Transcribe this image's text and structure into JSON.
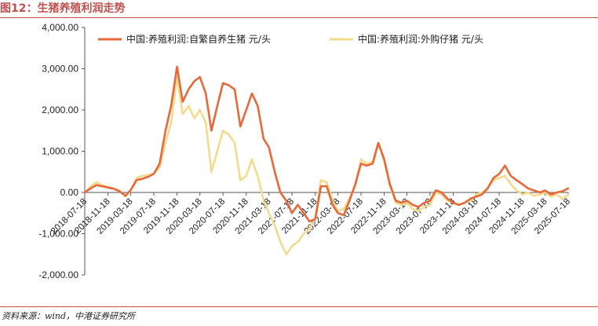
{
  "header": {
    "title": "图12：生猪养殖利润走势"
  },
  "footer": {
    "source": "资料来源：wind，中港证券研究所"
  },
  "colors": {
    "accent": "#c0504d",
    "series_self": "#e8683b",
    "series_purchased": "#f3db8e"
  },
  "chart_data": {
    "type": "line",
    "title": "",
    "xlabel": "",
    "ylabel": "",
    "ylim": [
      -2000,
      4000
    ],
    "yticks": [
      4000,
      3000,
      2000,
      1000,
      0,
      -1000,
      -2000
    ],
    "ytick_labels": [
      "4,000.00",
      "3,000.00",
      "2,000.00",
      "1,000.00",
      "0.00",
      "-1,000.00",
      "-2,000.00"
    ],
    "x_range": [
      "2018-07-18",
      "2025-07-18"
    ],
    "xticks": [
      "2018-07-18",
      "2018-11-18",
      "2019-03-18",
      "2019-07-18",
      "2019-11-18",
      "2020-03-18",
      "2020-07-18",
      "2020-11-18",
      "2021-03-18",
      "2021-07-18",
      "2021-11-18",
      "2022-03-18",
      "2022-07-18",
      "2022-11-18",
      "2023-03-18",
      "2023-07-18",
      "2023-11-18",
      "2024-03-18",
      "2024-07-18",
      "2024-11-18",
      "2025-03-18",
      "2025-07-18"
    ],
    "grid": false,
    "legend_position": "top",
    "series": [
      {
        "name": "中国:养殖利润:自繁自养生猪  元/头",
        "color": "#e8683b",
        "points": [
          [
            "2018-07-18",
            0
          ],
          [
            "2018-08-18",
            100
          ],
          [
            "2018-09-18",
            180
          ],
          [
            "2018-10-18",
            150
          ],
          [
            "2018-11-18",
            120
          ],
          [
            "2018-12-18",
            90
          ],
          [
            "2019-01-18",
            30
          ],
          [
            "2019-02-18",
            -80
          ],
          [
            "2019-03-18",
            60
          ],
          [
            "2019-04-18",
            300
          ],
          [
            "2019-05-18",
            330
          ],
          [
            "2019-06-18",
            380
          ],
          [
            "2019-07-18",
            450
          ],
          [
            "2019-08-18",
            700
          ],
          [
            "2019-09-18",
            1500
          ],
          [
            "2019-10-18",
            2100
          ],
          [
            "2019-11-18",
            3050
          ],
          [
            "2019-12-18",
            2200
          ],
          [
            "2020-01-18",
            2500
          ],
          [
            "2020-02-18",
            2700
          ],
          [
            "2020-03-18",
            2800
          ],
          [
            "2020-04-18",
            2400
          ],
          [
            "2020-05-18",
            1500
          ],
          [
            "2020-06-18",
            2100
          ],
          [
            "2020-07-18",
            2650
          ],
          [
            "2020-08-18",
            2600
          ],
          [
            "2020-09-18",
            2500
          ],
          [
            "2020-10-18",
            1600
          ],
          [
            "2020-11-18",
            2000
          ],
          [
            "2020-12-18",
            2400
          ],
          [
            "2021-01-18",
            2100
          ],
          [
            "2021-02-18",
            1300
          ],
          [
            "2021-03-18",
            1100
          ],
          [
            "2021-04-18",
            500
          ],
          [
            "2021-05-18",
            0
          ],
          [
            "2021-06-18",
            -200
          ],
          [
            "2021-07-18",
            -500
          ],
          [
            "2021-08-18",
            -300
          ],
          [
            "2021-09-18",
            -500
          ],
          [
            "2021-10-18",
            -700
          ],
          [
            "2021-11-18",
            -650
          ],
          [
            "2021-12-18",
            150
          ],
          [
            "2022-01-18",
            150
          ],
          [
            "2022-02-18",
            -300
          ],
          [
            "2022-03-18",
            -500
          ],
          [
            "2022-04-18",
            -550
          ],
          [
            "2022-05-18",
            -200
          ],
          [
            "2022-06-18",
            200
          ],
          [
            "2022-07-18",
            700
          ],
          [
            "2022-08-18",
            650
          ],
          [
            "2022-09-18",
            700
          ],
          [
            "2022-10-18",
            1200
          ],
          [
            "2022-11-18",
            800
          ],
          [
            "2022-12-18",
            200
          ],
          [
            "2023-01-18",
            -200
          ],
          [
            "2023-02-18",
            -250
          ],
          [
            "2023-03-18",
            -200
          ],
          [
            "2023-04-18",
            -300
          ],
          [
            "2023-05-18",
            -350
          ],
          [
            "2023-06-18",
            -250
          ],
          [
            "2023-07-18",
            -200
          ],
          [
            "2023-08-18",
            50
          ],
          [
            "2023-09-18",
            0
          ],
          [
            "2023-10-18",
            -150
          ],
          [
            "2023-11-18",
            -250
          ],
          [
            "2023-12-18",
            -300
          ],
          [
            "2024-01-18",
            -250
          ],
          [
            "2024-02-18",
            -150
          ],
          [
            "2024-03-18",
            -100
          ],
          [
            "2024-04-18",
            -50
          ],
          [
            "2024-05-18",
            100
          ],
          [
            "2024-06-18",
            350
          ],
          [
            "2024-07-18",
            450
          ],
          [
            "2024-08-18",
            650
          ],
          [
            "2024-09-18",
            400
          ],
          [
            "2024-10-18",
            300
          ],
          [
            "2024-11-18",
            200
          ],
          [
            "2024-12-18",
            100
          ],
          [
            "2025-01-18",
            50
          ],
          [
            "2025-02-18",
            0
          ],
          [
            "2025-03-18",
            50
          ],
          [
            "2025-04-18",
            -50
          ],
          [
            "2025-05-18",
            0
          ],
          [
            "2025-06-18",
            30
          ],
          [
            "2025-07-18",
            100
          ]
        ]
      },
      {
        "name": "中国:养殖利润:外购仔猪  元/头",
        "color": "#f3db8e",
        "points": [
          [
            "2018-07-18",
            0
          ],
          [
            "2018-08-18",
            150
          ],
          [
            "2018-09-18",
            250
          ],
          [
            "2018-10-18",
            180
          ],
          [
            "2018-11-18",
            130
          ],
          [
            "2018-12-18",
            100
          ],
          [
            "2019-01-18",
            40
          ],
          [
            "2019-02-18",
            -100
          ],
          [
            "2019-03-18",
            50
          ],
          [
            "2019-04-18",
            350
          ],
          [
            "2019-05-18",
            400
          ],
          [
            "2019-06-18",
            420
          ],
          [
            "2019-07-18",
            450
          ],
          [
            "2019-08-18",
            600
          ],
          [
            "2019-09-18",
            1200
          ],
          [
            "2019-10-18",
            1700
          ],
          [
            "2019-11-18",
            2800
          ],
          [
            "2019-12-18",
            1900
          ],
          [
            "2020-01-18",
            2100
          ],
          [
            "2020-02-18",
            1800
          ],
          [
            "2020-03-18",
            2000
          ],
          [
            "2020-04-18",
            1700
          ],
          [
            "2020-05-18",
            500
          ],
          [
            "2020-06-18",
            1000
          ],
          [
            "2020-07-18",
            1500
          ],
          [
            "2020-08-18",
            1400
          ],
          [
            "2020-09-18",
            1200
          ],
          [
            "2020-10-18",
            300
          ],
          [
            "2020-11-18",
            400
          ],
          [
            "2020-12-18",
            800
          ],
          [
            "2021-01-18",
            400
          ],
          [
            "2021-02-18",
            -200
          ],
          [
            "2021-03-18",
            -500
          ],
          [
            "2021-04-18",
            -800
          ],
          [
            "2021-05-18",
            -1200
          ],
          [
            "2021-06-18",
            -1500
          ],
          [
            "2021-07-18",
            -1300
          ],
          [
            "2021-08-18",
            -1200
          ],
          [
            "2021-09-18",
            -1000
          ],
          [
            "2021-10-18",
            -900
          ],
          [
            "2021-11-18",
            -600
          ],
          [
            "2021-12-18",
            300
          ],
          [
            "2022-01-18",
            250
          ],
          [
            "2022-02-18",
            -200
          ],
          [
            "2022-03-18",
            -450
          ],
          [
            "2022-04-18",
            -400
          ],
          [
            "2022-05-18",
            -150
          ],
          [
            "2022-06-18",
            150
          ],
          [
            "2022-07-18",
            800
          ],
          [
            "2022-08-18",
            700
          ],
          [
            "2022-09-18",
            750
          ],
          [
            "2022-10-18",
            1200
          ],
          [
            "2022-11-18",
            750
          ],
          [
            "2022-12-18",
            150
          ],
          [
            "2023-01-18",
            -250
          ],
          [
            "2023-02-18",
            -300
          ],
          [
            "2023-03-18",
            -250
          ],
          [
            "2023-04-18",
            -400
          ],
          [
            "2023-05-18",
            -450
          ],
          [
            "2023-06-18",
            -350
          ],
          [
            "2023-07-18",
            -300
          ],
          [
            "2023-08-18",
            0
          ],
          [
            "2023-09-18",
            -50
          ],
          [
            "2023-10-18",
            -200
          ],
          [
            "2023-11-18",
            -250
          ],
          [
            "2023-12-18",
            -300
          ],
          [
            "2024-01-18",
            -250
          ],
          [
            "2024-02-18",
            -200
          ],
          [
            "2024-03-18",
            -50
          ],
          [
            "2024-04-18",
            0
          ],
          [
            "2024-05-18",
            100
          ],
          [
            "2024-06-18",
            300
          ],
          [
            "2024-07-18",
            350
          ],
          [
            "2024-08-18",
            400
          ],
          [
            "2024-09-18",
            200
          ],
          [
            "2024-10-18",
            50
          ],
          [
            "2024-11-18",
            -50
          ],
          [
            "2024-12-18",
            0
          ],
          [
            "2025-01-18",
            -80
          ],
          [
            "2025-02-18",
            -50
          ],
          [
            "2025-03-18",
            0
          ],
          [
            "2025-04-18",
            -100
          ],
          [
            "2025-05-18",
            -50
          ],
          [
            "2025-06-18",
            -150
          ],
          [
            "2025-07-18",
            -50
          ]
        ]
      }
    ]
  }
}
